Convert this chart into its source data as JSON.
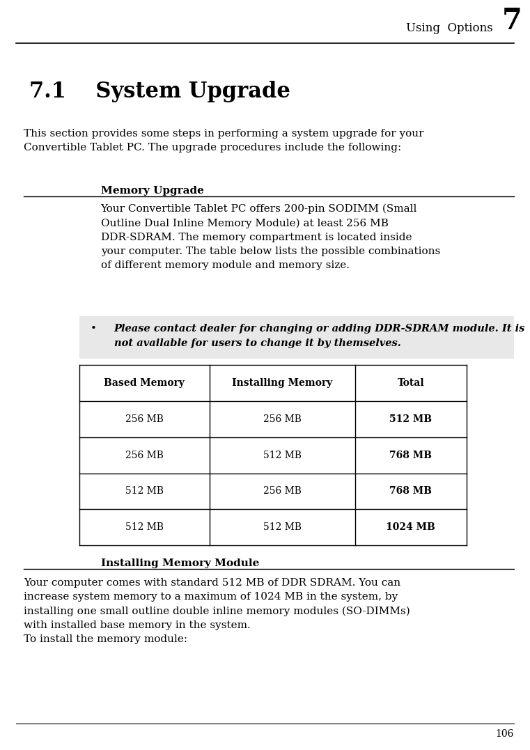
{
  "page_width": 7.61,
  "page_height": 10.77,
  "bg_color": "#ffffff",
  "header_text": "Using  Options",
  "header_number": "7",
  "footer_number": "106",
  "section_title": "7.1    System Upgrade",
  "intro_text": "This section provides some steps in performing a system upgrade for your\nConvertible Tablet PC. The upgrade procedures include the following:",
  "memory_upgrade_heading": "Memory Upgrade",
  "memory_upgrade_body": "Your Convertible Tablet PC offers 200-pin SODIMM (Small\nOutline Dual Inline Memory Module) at least 256 MB\nDDR-SDRAM. The memory compartment is located inside\nyour computer. The table below lists the possible combinations\nof different memory module and memory size.",
  "bullet_text": "Please contact dealer for changing or adding DDR-SDRAM module. It is\nnot available for users to change it by themselves.",
  "table_headers": [
    "Based Memory",
    "Installing Memory",
    "Total"
  ],
  "table_rows": [
    [
      "256 MB",
      "256 MB",
      "512 MB"
    ],
    [
      "256 MB",
      "512 MB",
      "768 MB"
    ],
    [
      "512 MB",
      "256 MB",
      "768 MB"
    ],
    [
      "512 MB",
      "512 MB",
      "1024 MB"
    ]
  ],
  "installing_heading": "Installing Memory Module",
  "installing_body": "Your computer comes with standard 512 MB of DDR SDRAM. You can\nincrease system memory to a maximum of 1024 MB in the system, by\ninstalling one small outline double inline memory modules (SO-DIMMs)\nwith installed base memory in the system.\nTo install the memory module:"
}
